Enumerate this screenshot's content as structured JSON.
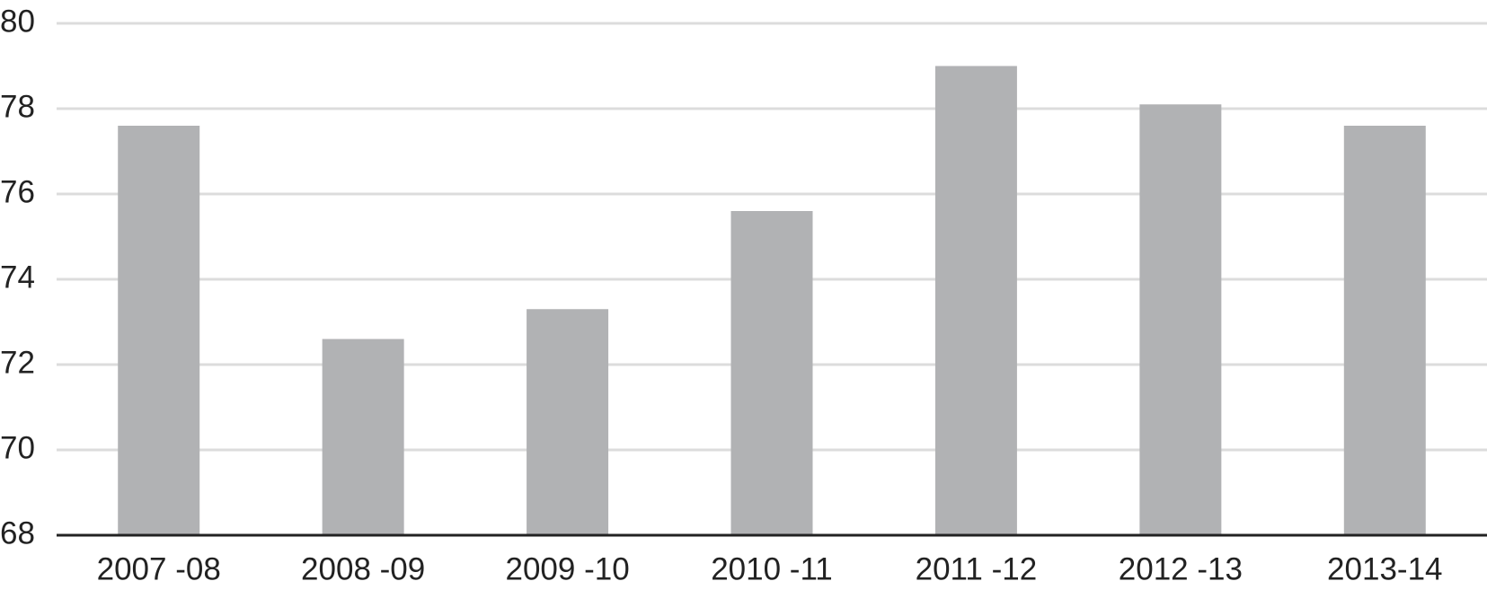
{
  "chart_data": {
    "type": "bar",
    "categories": [
      "2007 -08",
      "2008 -09",
      "2009 -10",
      "2010 -11",
      "2011 -12",
      "2012 -13",
      "2013-14"
    ],
    "values": [
      77.6,
      72.6,
      73.3,
      75.6,
      79.0,
      78.1,
      77.6
    ],
    "color": "#b1b2b4",
    "ylim": [
      68,
      80
    ],
    "yticks": [
      68,
      70,
      72,
      74,
      76,
      78,
      80
    ],
    "grid": true
  }
}
